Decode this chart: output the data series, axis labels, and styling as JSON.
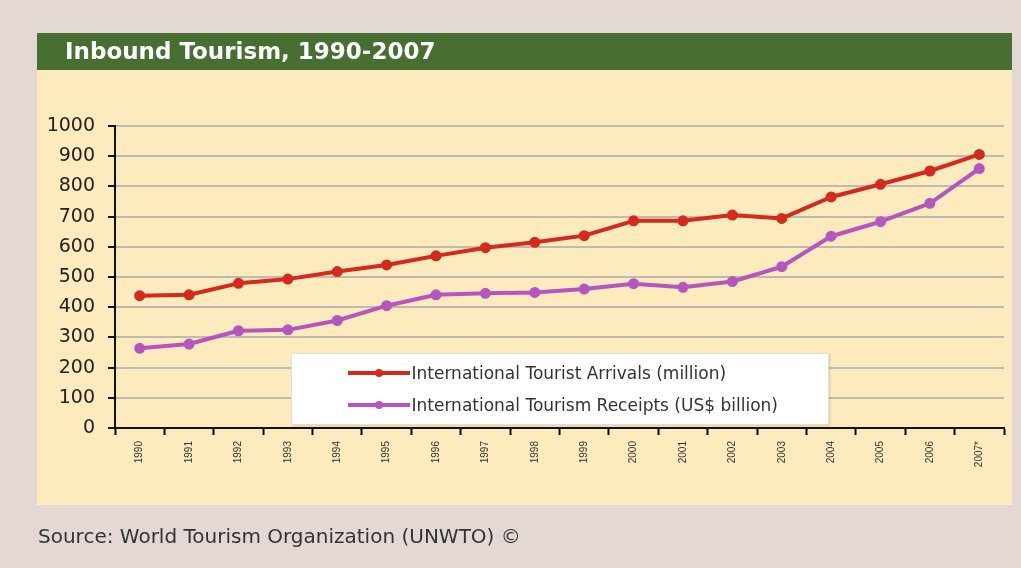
{
  "chart_data": {
    "type": "line",
    "title": "Inbound Tourism, 1990-2007",
    "categories": [
      "1990",
      "1991",
      "1992",
      "1993",
      "1994",
      "1995",
      "1996",
      "1997",
      "1998",
      "1999",
      "2000",
      "2001",
      "2002",
      "2003",
      "2004",
      "2005",
      "2006",
      "2007*"
    ],
    "series": [
      {
        "name": "International Tourist Arrivals (million)",
        "color": "#d42a1e",
        "values": [
          438,
          441,
          479,
          493,
          518,
          540,
          570,
          597,
          615,
          637,
          686,
          686,
          705,
          694,
          765,
          807,
          851,
          906
        ]
      },
      {
        "name": "International Tourism Receipts (US$ billion)",
        "color": "#b455c0",
        "values": [
          264,
          278,
          322,
          325,
          356,
          405,
          441,
          446,
          449,
          460,
          478,
          466,
          485,
          534,
          635,
          683,
          744,
          859
        ]
      }
    ],
    "ylim": [
      0,
      1000
    ],
    "yticks": [
      0,
      100,
      200,
      300,
      400,
      500,
      600,
      700,
      800,
      900,
      1000
    ],
    "grid": "y",
    "legend": "bottom",
    "marker": "circle",
    "annotations": [
      "Source: World Tourism Organization (UNWTO) ©"
    ]
  }
}
